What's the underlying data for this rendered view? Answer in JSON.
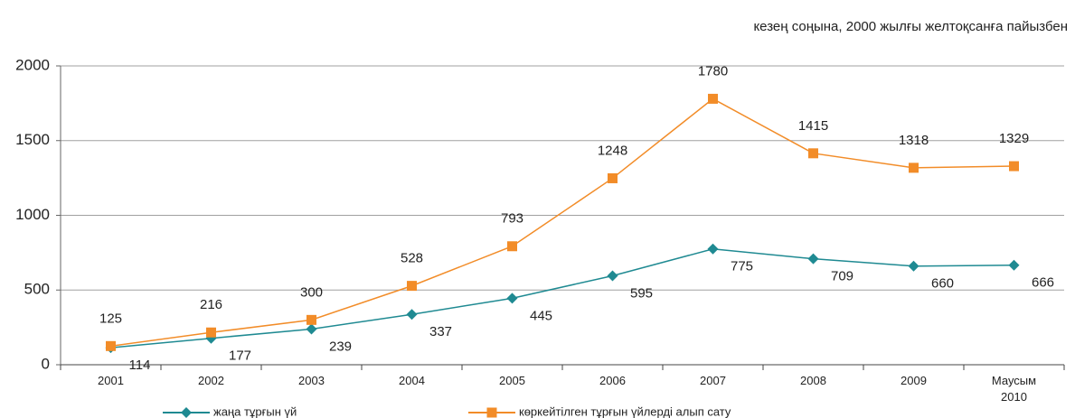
{
  "chart_data": {
    "type": "line",
    "subtitle": "кезең соңына, 2000 жылғы желтоқсанға пайызбен",
    "categories": [
      "2001",
      "2002",
      "2003",
      "2004",
      "2005",
      "2006",
      "2007",
      "2008",
      "2009",
      "Маусым 2010"
    ],
    "series": [
      {
        "name": "жаңа тұрғын үй",
        "color": "#1f8a92",
        "marker": "diamond",
        "values": [
          114,
          177,
          239,
          337,
          445,
          595,
          775,
          709,
          660,
          666
        ]
      },
      {
        "name": "көркейтілген тұрғын үйлерді алып сату",
        "color": "#f28c28",
        "marker": "square",
        "values": [
          125,
          216,
          300,
          528,
          793,
          1248,
          1780,
          1415,
          1318,
          1329
        ]
      }
    ],
    "ylim": [
      0,
      2000
    ],
    "yticks": [
      0,
      500,
      1000,
      1500,
      2000
    ],
    "grid": true
  }
}
